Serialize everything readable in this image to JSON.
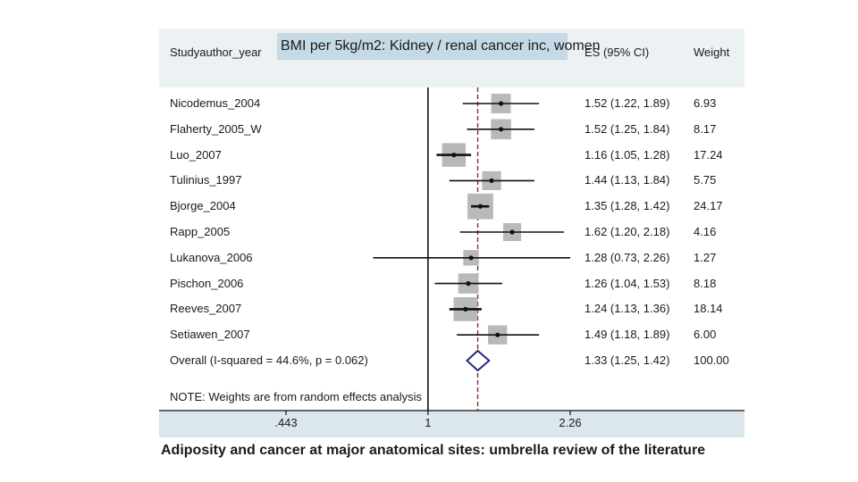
{
  "header": {
    "study_col": "Studyauthor_year",
    "title": "BMI per 5kg/m2: Kidney / renal cancer inc, women",
    "es_col": "ES (95% CI)",
    "weight_col": "Weight"
  },
  "chart_data": {
    "type": "forest",
    "title": "BMI per 5kg/m2: Kidney / renal cancer inc, women",
    "xscale": "log",
    "xlim": [
      0.443,
      2.26
    ],
    "xticks": [
      {
        "value": 0.443,
        "label": ".443"
      },
      {
        "value": 1,
        "label": "1"
      },
      {
        "value": 2.26,
        "label": "2.26"
      }
    ],
    "null_line": 1,
    "studies": [
      {
        "name": "Nicodemus_2004",
        "es": 1.52,
        "lo": 1.22,
        "hi": 1.89,
        "es_text": "1.52 (1.22, 1.89)",
        "weight": 6.93,
        "weight_text": "6.93"
      },
      {
        "name": "Flaherty_2005_W",
        "es": 1.52,
        "lo": 1.25,
        "hi": 1.84,
        "es_text": "1.52 (1.25, 1.84)",
        "weight": 8.17,
        "weight_text": "8.17"
      },
      {
        "name": "Luo_2007",
        "es": 1.16,
        "lo": 1.05,
        "hi": 1.28,
        "es_text": "1.16 (1.05, 1.28)",
        "weight": 17.24,
        "weight_text": "17.24"
      },
      {
        "name": "Tulinius_1997",
        "es": 1.44,
        "lo": 1.13,
        "hi": 1.84,
        "es_text": "1.44 (1.13, 1.84)",
        "weight": 5.75,
        "weight_text": "5.75"
      },
      {
        "name": "Bjorge_2004",
        "es": 1.35,
        "lo": 1.28,
        "hi": 1.42,
        "es_text": "1.35 (1.28, 1.42)",
        "weight": 24.17,
        "weight_text": "24.17"
      },
      {
        "name": "Rapp_2005",
        "es": 1.62,
        "lo": 1.2,
        "hi": 2.18,
        "es_text": "1.62 (1.20, 2.18)",
        "weight": 4.16,
        "weight_text": "4.16"
      },
      {
        "name": "Lukanova_2006",
        "es": 1.28,
        "lo": 0.73,
        "hi": 2.26,
        "es_text": "1.28 (0.73, 2.26)",
        "weight": 1.27,
        "weight_text": "1.27"
      },
      {
        "name": "Pischon_2006",
        "es": 1.26,
        "lo": 1.04,
        "hi": 1.53,
        "es_text": "1.26 (1.04, 1.53)",
        "weight": 8.18,
        "weight_text": "8.18"
      },
      {
        "name": "Reeves_2007",
        "es": 1.24,
        "lo": 1.13,
        "hi": 1.36,
        "es_text": "1.24 (1.13, 1.36)",
        "weight": 18.14,
        "weight_text": "18.14"
      },
      {
        "name": "Setiawen_2007",
        "es": 1.49,
        "lo": 1.18,
        "hi": 1.89,
        "es_text": "1.49 (1.18, 1.89)",
        "weight": 6.0,
        "weight_text": "6.00"
      }
    ],
    "overall": {
      "label": "Overall  (I-squared = 44.6%, p = 0.062)",
      "es": 1.33,
      "lo": 1.25,
      "hi": 1.42,
      "es_text": "1.33 (1.25, 1.42)",
      "weight_text": "100.00"
    },
    "note": "NOTE: Weights are from random effects analysis",
    "colors": {
      "box": "#b9b9b9",
      "ci": "#111111",
      "overall_line": "#8b2e2e",
      "diamond": "#2a2a7a"
    }
  },
  "caption": "Adiposity and cancer at major anatomical sites: umbrella review of the literature"
}
